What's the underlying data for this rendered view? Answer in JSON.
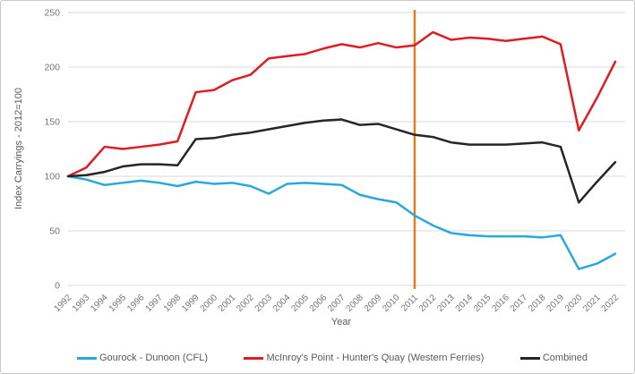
{
  "figure": {
    "ylabel": "Index Carryings - 2012=100",
    "xlabel": "Year"
  },
  "chart_data": {
    "type": "line",
    "title": "",
    "xlabel": "Year",
    "ylabel": "Index Carryings - 2012=100",
    "x": [
      1992,
      1993,
      1994,
      1995,
      1996,
      1997,
      1998,
      1999,
      2000,
      2001,
      2002,
      2003,
      2004,
      2005,
      2006,
      2007,
      2008,
      2009,
      2010,
      2011,
      2012,
      2013,
      2014,
      2015,
      2016,
      2017,
      2018,
      2019,
      2020,
      2021,
      2022
    ],
    "ylim": [
      0,
      250
    ],
    "yticks": [
      0,
      50,
      100,
      150,
      200,
      250
    ],
    "grid": "horizontal",
    "gridline_color": "#d9d9d9",
    "legend_position": "bottom",
    "series": [
      {
        "id": "gourock-dunoon-cfl",
        "name": "Gourock - Dunoon (CFL)",
        "color": "#29A8DC",
        "values": [
          100,
          97,
          92,
          94,
          96,
          94,
          91,
          95,
          93,
          94,
          91,
          84,
          93,
          94,
          93,
          92,
          83,
          79,
          76,
          64,
          55,
          48,
          46,
          45,
          45,
          45,
          44,
          46,
          15,
          20,
          29
        ]
      },
      {
        "id": "western-ferries",
        "name": "McInroy's Point - Hunter's Quay (Western Ferries)",
        "color": "#DD1D21",
        "values": [
          100,
          108,
          127,
          125,
          127,
          129,
          132,
          177,
          179,
          188,
          193,
          208,
          210,
          212,
          217,
          221,
          218,
          222,
          218,
          220,
          232,
          225,
          227,
          226,
          224,
          226,
          228,
          221,
          142,
          172,
          205
        ]
      },
      {
        "id": "combined",
        "name": "Combined",
        "color": "#262626",
        "values": [
          100,
          101,
          104,
          109,
          111,
          111,
          110,
          134,
          135,
          138,
          140,
          143,
          146,
          149,
          151,
          152,
          147,
          148,
          143,
          138,
          136,
          131,
          129,
          129,
          129,
          130,
          131,
          127,
          76,
          95,
          113
        ]
      }
    ],
    "reference_line": {
      "x": 2011,
      "color": "#DE7E23"
    }
  }
}
